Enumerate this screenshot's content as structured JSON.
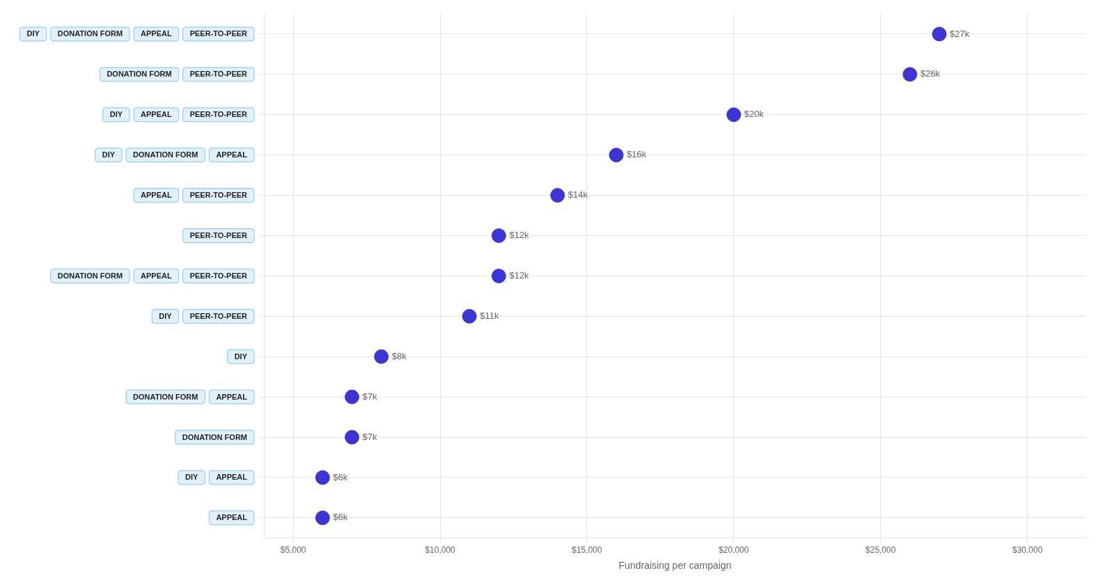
{
  "chart_data": {
    "type": "scatter",
    "categories": [
      [
        "DIY",
        "DONATION FORM",
        "APPEAL",
        "PEER-TO-PEER"
      ],
      [
        "DONATION FORM",
        "PEER-TO-PEER"
      ],
      [
        "DIY",
        "APPEAL",
        "PEER-TO-PEER"
      ],
      [
        "DIY",
        "DONATION FORM",
        "APPEAL"
      ],
      [
        "APPEAL",
        "PEER-TO-PEER"
      ],
      [
        "PEER-TO-PEER"
      ],
      [
        "DONATION FORM",
        "APPEAL",
        "PEER-TO-PEER"
      ],
      [
        "DIY",
        "PEER-TO-PEER"
      ],
      [
        "DIY"
      ],
      [
        "DONATION FORM",
        "APPEAL"
      ],
      [
        "DONATION FORM"
      ],
      [
        "DIY",
        "APPEAL"
      ],
      [
        "APPEAL"
      ]
    ],
    "values": [
      27000,
      26000,
      20000,
      16000,
      14000,
      12000,
      12000,
      11000,
      8000,
      7000,
      7000,
      6000,
      6000
    ],
    "value_labels": [
      "$27k",
      "$26k",
      "$20k",
      "$16k",
      "$14k",
      "$12k",
      "$12k",
      "$11k",
      "$8k",
      "$7k",
      "$7k",
      "$6k",
      "$6k"
    ],
    "color": "#3b35d4",
    "marker": "circle",
    "xlim": [
      4000,
      32000
    ],
    "xticks": [
      {
        "value": 5000,
        "label": "$5,000"
      },
      {
        "value": 10000,
        "label": "$10,000"
      },
      {
        "value": 15000,
        "label": "$15,000"
      },
      {
        "value": 20000,
        "label": "$20,000"
      },
      {
        "value": 25000,
        "label": "$25,000"
      },
      {
        "value": 30000,
        "label": "$30,000"
      }
    ],
    "xlabel": "Fundraising per campaign",
    "grid": true,
    "data_labels": true
  }
}
